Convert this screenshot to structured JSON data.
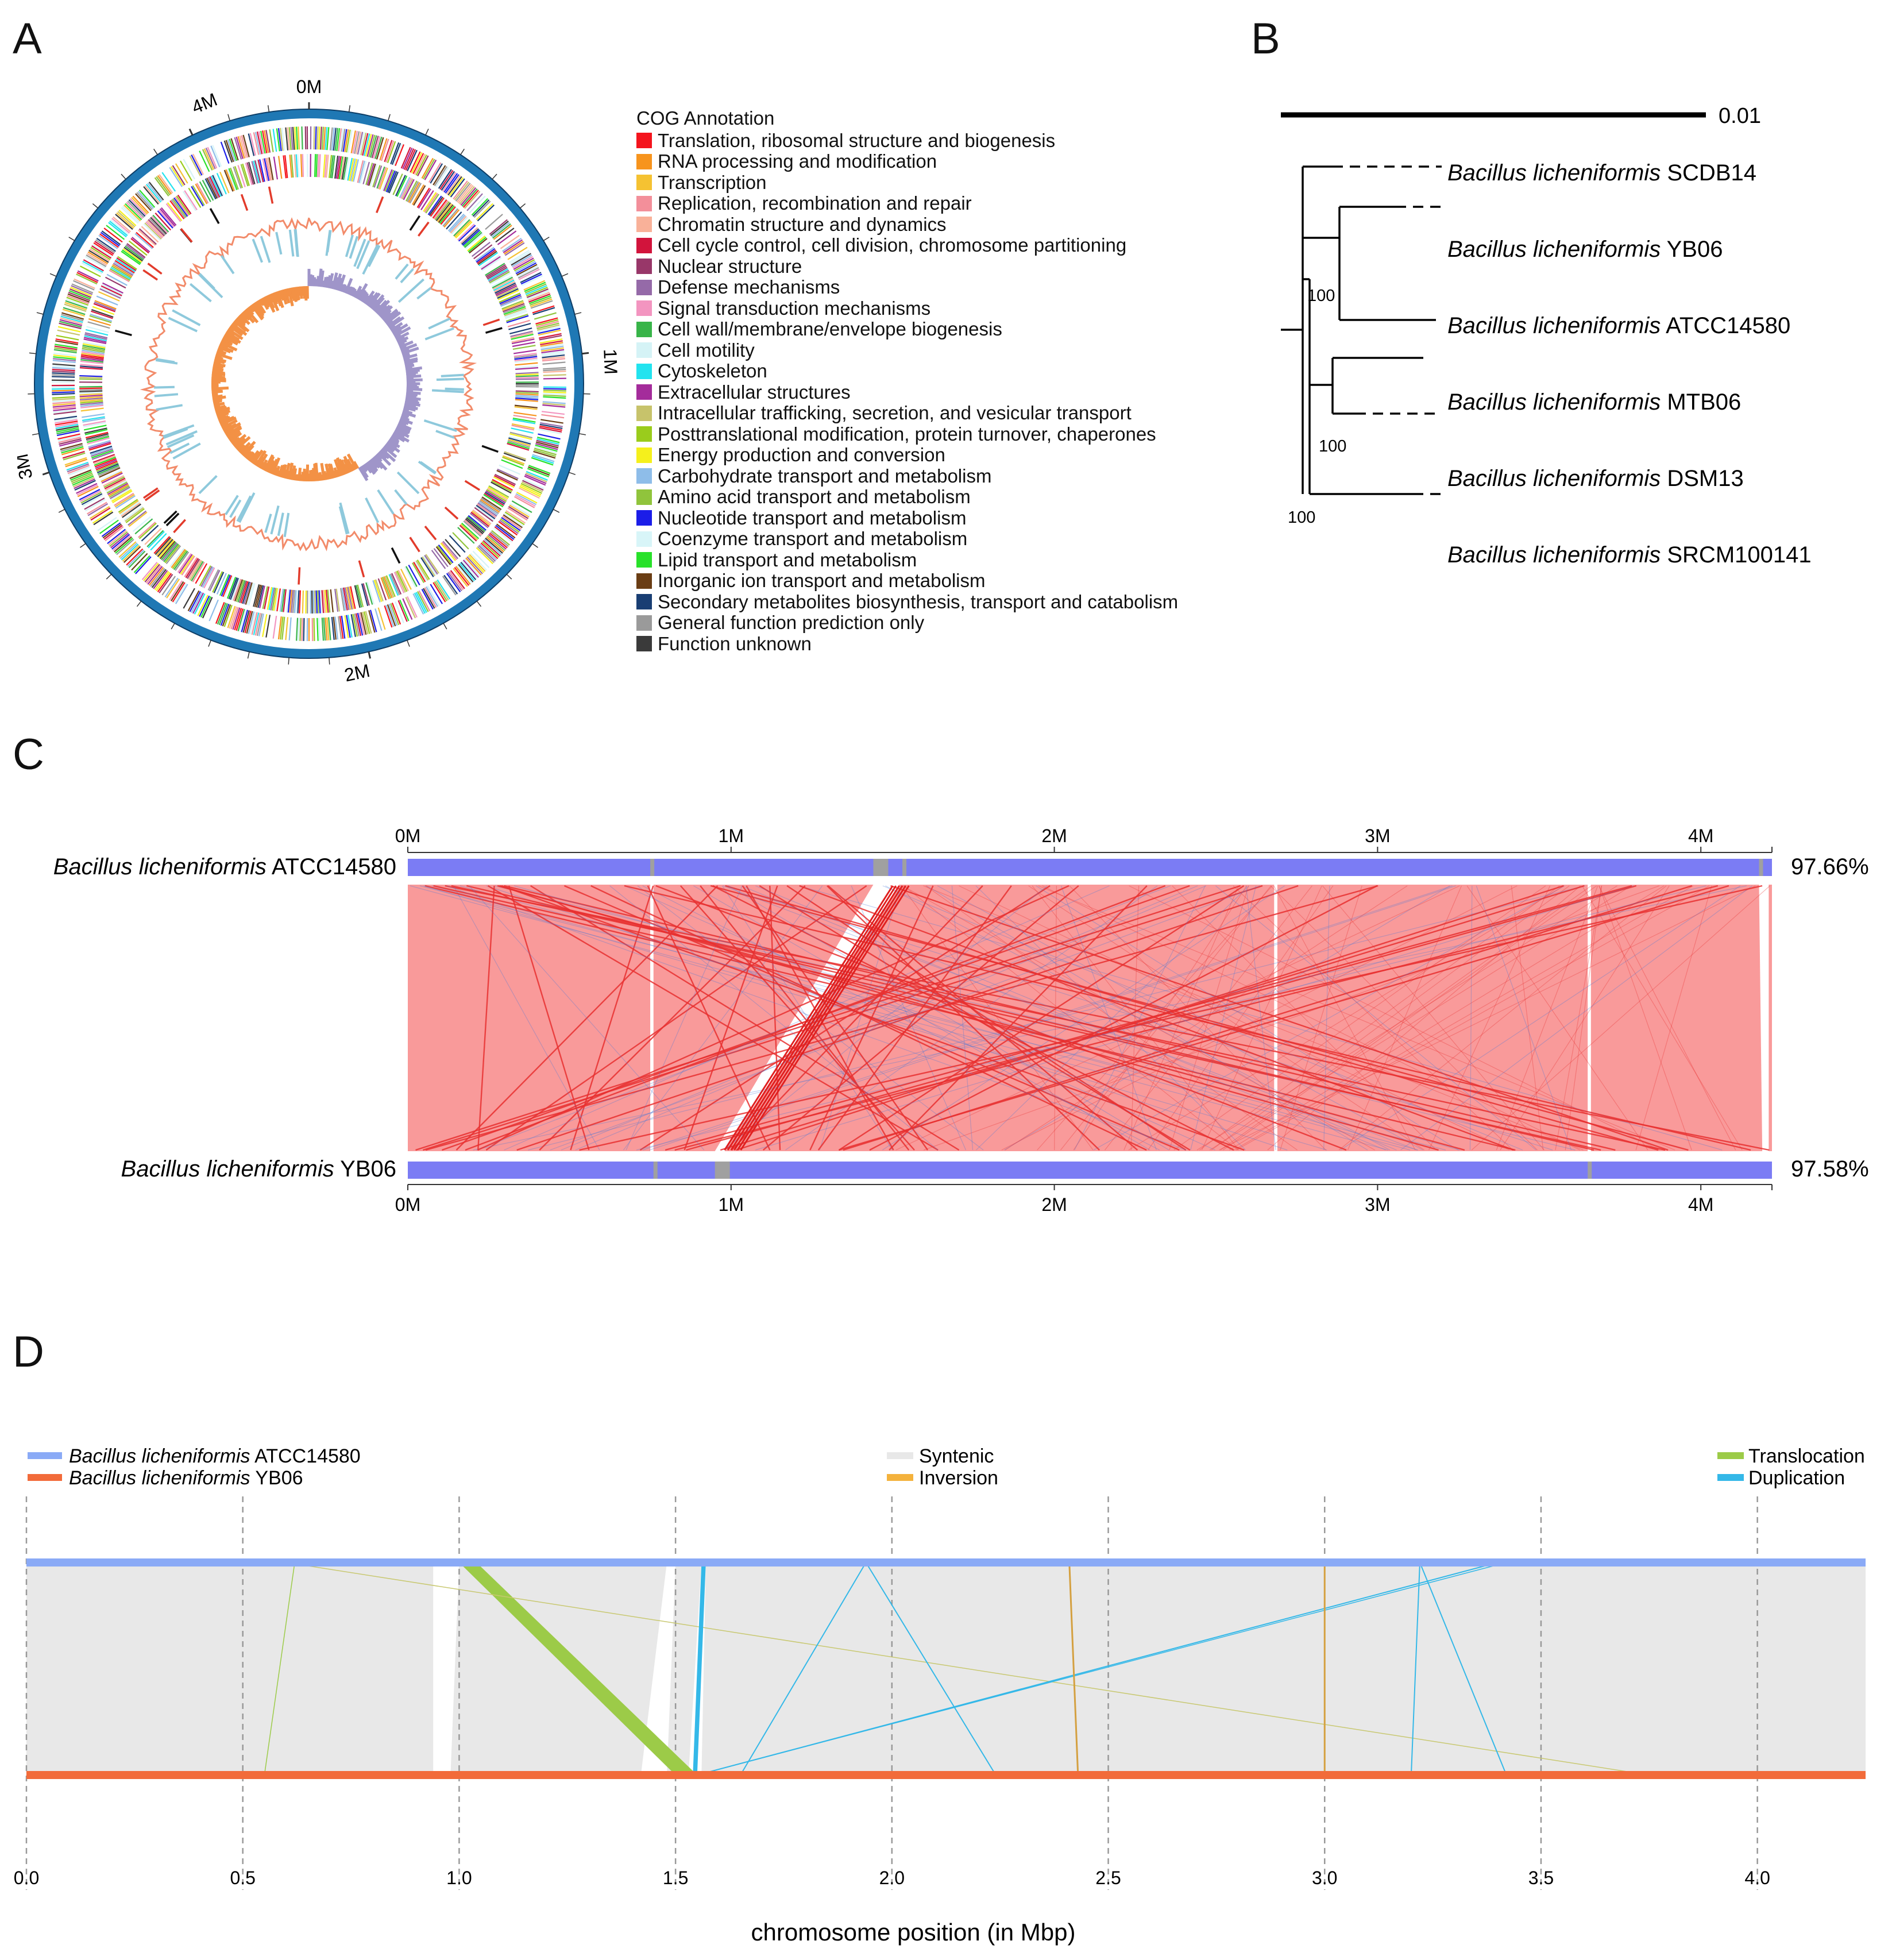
{
  "panels": {
    "a": "A",
    "b": "B",
    "c": "C",
    "d": "D"
  },
  "panelA": {
    "ring_labels": [
      "0M",
      "1M",
      "2M",
      "3M",
      "4M"
    ],
    "legend_title": "COG Annotation",
    "legend": [
      {
        "label": "Translation, ribosomal structure and biogenesis",
        "color": "#f4141d"
      },
      {
        "label": "RNA processing and modification",
        "color": "#f7941d"
      },
      {
        "label": "Transcription",
        "color": "#f5c232"
      },
      {
        "label": "Replication, recombination and repair",
        "color": "#f38f9a"
      },
      {
        "label": "Chromatin structure and dynamics",
        "color": "#f9b199"
      },
      {
        "label": "Cell cycle control, cell division, chromosome partitioning",
        "color": "#d2143c"
      },
      {
        "label": "Nuclear structure",
        "color": "#983769"
      },
      {
        "label": "Defense mechanisms",
        "color": "#956aa8"
      },
      {
        "label": "Signal transduction mechanisms",
        "color": "#f395c0"
      },
      {
        "label": "Cell wall/membrane/envelope biogenesis",
        "color": "#38b449"
      },
      {
        "label": "Cell motility",
        "color": "#d5f3f6"
      },
      {
        "label": "Cytoskeleton",
        "color": "#22e3ef"
      },
      {
        "label": "Extracellular structures",
        "color": "#a42c9b"
      },
      {
        "label": "Intracellular trafficking, secretion, and vesicular transport",
        "color": "#c7c36b"
      },
      {
        "label": "Posttranslational modification, protein turnover, chaperones",
        "color": "#9acc1c"
      },
      {
        "label": "Energy production and conversion",
        "color": "#f5f01c"
      },
      {
        "label": "Carbohydrate transport and metabolism",
        "color": "#8ebde9"
      },
      {
        "label": "Amino acid transport and metabolism",
        "color": "#90c43c"
      },
      {
        "label": "Nucleotide transport and metabolism",
        "color": "#1b1de8"
      },
      {
        "label": "Coenzyme transport and metabolism",
        "color": "#d8f5f8"
      },
      {
        "label": "Lipid transport and metabolism",
        "color": "#28e12a"
      },
      {
        "label": "Inorganic ion transport and metabolism",
        "color": "#6a3d14"
      },
      {
        "label": "Secondary metabolites biosynthesis, transport and catabolism",
        "color": "#193e73"
      },
      {
        "label": "General function prediction only",
        "color": "#9a9a9a"
      },
      {
        "label": "Function unknown",
        "color": "#3a3a3a"
      }
    ]
  },
  "panelB": {
    "scale_label": "0.01",
    "taxa": [
      {
        "genus": "Bacillus licheniformis",
        "strain": "SCDB14"
      },
      {
        "genus": "Bacillus licheniformis",
        "strain": "YB06"
      },
      {
        "genus": "Bacillus licheniformis",
        "strain": "ATCC14580"
      },
      {
        "genus": "Bacillus licheniformis",
        "strain": "MTB06"
      },
      {
        "genus": "Bacillus licheniformis",
        "strain": "DSM13"
      },
      {
        "genus": "Bacillus licheniformis",
        "strain": "SRCM100141"
      }
    ],
    "bootstrap": [
      "100",
      "100",
      "100"
    ]
  },
  "panelC": {
    "top_genome": {
      "genus": "Bacillus licheniformis",
      "strain": "ATCC14580",
      "identity": "97.66%"
    },
    "bottom_genome": {
      "genus": "Bacillus licheniformis",
      "strain": "YB06",
      "identity": "97.58%"
    },
    "ticks": [
      "0M",
      "1M",
      "2M",
      "3M",
      "4M"
    ],
    "colors": {
      "bar": "#7b7cf4",
      "gap": "#a0a0a0",
      "band": "#f99a9a",
      "forward": "#e83030",
      "reverse": "#4a78d8"
    }
  },
  "panelD": {
    "legend": {
      "genome1": {
        "genus": "Bacillus licheniformis",
        "strain": "ATCC14580",
        "color": "#8aaaf6"
      },
      "genome2": {
        "genus": "Bacillus licheniformis",
        "strain": "YB06",
        "color": "#f26b3a"
      },
      "syntenic": {
        "label": "Syntenic",
        "color": "#e8e8e8"
      },
      "inversion": {
        "label": "Inversion",
        "color": "#f4b23c"
      },
      "translocation": {
        "label": "Translocation",
        "color": "#9ccb48"
      },
      "duplication": {
        "label": "Duplication",
        "color": "#34b8e8"
      }
    },
    "chart_data": {
      "type": "synteny",
      "xlabel": "chromosome position (in Mbp)",
      "xlim": [
        0.0,
        4.25
      ],
      "ticks": [
        "0.0",
        "0.5",
        "1.0",
        "1.5",
        "2.0",
        "2.5",
        "3.0",
        "3.5",
        "4.0"
      ],
      "tick_values": [
        0.0,
        0.5,
        1.0,
        1.5,
        2.0,
        2.5,
        3.0,
        3.5,
        4.0
      ],
      "translocations": [
        {
          "ref": [
            1.0,
            1.04
          ],
          "query": [
            1.5,
            1.55
          ]
        },
        {
          "ref": [
            0.62,
            0.62
          ],
          "query": [
            0.55,
            0.55
          ]
        }
      ],
      "duplications": [
        {
          "ref": [
            1.94,
            1.94
          ],
          "query": [
            1.65,
            1.65
          ]
        },
        {
          "ref": [
            1.94,
            1.94
          ],
          "query": [
            2.24,
            2.24
          ]
        },
        {
          "ref": [
            3.22,
            3.22
          ],
          "query": [
            3.42,
            3.42
          ]
        },
        {
          "ref": [
            3.22,
            3.22
          ],
          "query": [
            3.2,
            3.2
          ]
        },
        {
          "ref": [
            3.4,
            3.4
          ],
          "query": [
            1.55,
            1.55
          ]
        }
      ],
      "inversions": [
        {
          "ref": [
            2.41,
            2.41
          ],
          "query": [
            2.43,
            2.43
          ]
        },
        {
          "ref": [
            3.0,
            3.0
          ],
          "query": [
            3.0,
            3.0
          ]
        }
      ]
    }
  }
}
